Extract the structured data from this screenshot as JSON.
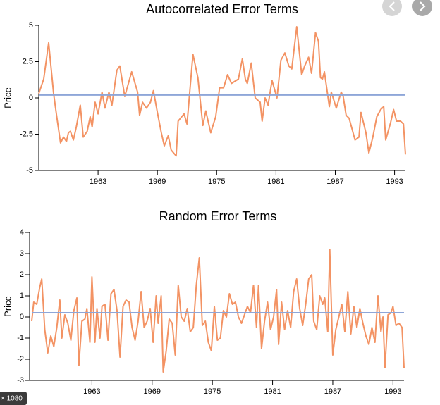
{
  "chart_data": [
    {
      "type": "line",
      "title": "Autocorrelated Error Terms",
      "y_label": "Price",
      "x": [
        1957.0,
        1957.5,
        1958.0,
        1958.5,
        1958.8,
        1959.2,
        1959.5,
        1959.8,
        1960.0,
        1960.2,
        1960.5,
        1960.8,
        1961.2,
        1961.5,
        1961.9,
        1962.2,
        1962.4,
        1962.7,
        1963.0,
        1963.4,
        1963.7,
        1964.1,
        1964.4,
        1964.9,
        1965.2,
        1965.7,
        1966.4,
        1967.0,
        1967.2,
        1967.5,
        1967.9,
        1968.3,
        1968.6,
        1969.0,
        1969.4,
        1969.7,
        1970.1,
        1970.4,
        1970.9,
        1971.1,
        1971.7,
        1972.0,
        1972.6,
        1973.1,
        1973.6,
        1973.9,
        1974.4,
        1974.9,
        1975.3,
        1975.7,
        1976.1,
        1976.5,
        1977.2,
        1977.6,
        1977.9,
        1978.1,
        1978.5,
        1978.9,
        1979.4,
        1979.6,
        1979.9,
        1980.2,
        1980.6,
        1981.1,
        1981.5,
        1981.9,
        1982.3,
        1982.6,
        1983.1,
        1983.6,
        1983.9,
        1984.3,
        1984.6,
        1985.0,
        1985.3,
        1985.5,
        1985.7,
        1985.9,
        1986.4,
        1986.6,
        1987.1,
        1987.6,
        1987.8,
        1988.1,
        1988.4,
        1989.0,
        1989.4,
        1989.6,
        1990.1,
        1990.4,
        1990.8,
        1991.2,
        1991.6,
        1991.9,
        1992.1,
        1992.6,
        1992.9,
        1993.2,
        1993.6,
        1993.9,
        1994.1
      ],
      "values": [
        0.3,
        1.3,
        3.8,
        0.3,
        -1.2,
        -3.1,
        -2.7,
        -3.0,
        -2.4,
        -2.3,
        -2.9,
        -2.0,
        -0.5,
        -2.7,
        -2.3,
        -1.3,
        -2.0,
        -0.3,
        -1.1,
        0.4,
        -0.7,
        0.4,
        -0.5,
        1.9,
        2.2,
        0.1,
        1.8,
        0.4,
        -1.2,
        -0.3,
        -0.7,
        -0.3,
        0.5,
        -1.0,
        -2.4,
        -3.3,
        -2.6,
        -3.6,
        -4.0,
        -1.6,
        -1.1,
        -1.8,
        3.0,
        1.4,
        -1.9,
        -0.9,
        -2.4,
        -1.3,
        0.7,
        0.7,
        1.6,
        1.0,
        1.3,
        2.7,
        1.3,
        1.0,
        2.4,
        0.0,
        -0.3,
        -1.6,
        0.0,
        -0.5,
        1.2,
        0.0,
        2.6,
        3.1,
        2.2,
        2.0,
        4.9,
        1.6,
        2.2,
        2.8,
        1.7,
        4.5,
        3.9,
        1.4,
        1.3,
        1.8,
        -0.6,
        0.4,
        -0.7,
        0.4,
        0.1,
        -1.2,
        -1.4,
        -2.9,
        -2.7,
        -1.0,
        -2.4,
        -3.8,
        -2.7,
        -1.3,
        -0.8,
        -0.6,
        -2.9,
        -1.7,
        -0.8,
        -1.6,
        -1.6,
        -1.8,
        -3.9
      ],
      "color": "#f39364",
      "reference_line": {
        "value": 0.2,
        "color": "#8ea6d8"
      },
      "xlim": [
        1957,
        1994.1
      ],
      "xticks": [
        1963,
        1969,
        1975,
        1981,
        1987,
        1993
      ],
      "ylim": [
        -5,
        5
      ],
      "yticks": [
        -5,
        -2.5,
        0,
        2.5,
        5
      ]
    },
    {
      "type": "line",
      "title": "Random Error Terms",
      "y_label": "Price",
      "x": [
        1957.0,
        1957.2,
        1957.5,
        1957.8,
        1958.0,
        1958.3,
        1958.6,
        1958.9,
        1959.2,
        1959.5,
        1959.8,
        1960.0,
        1960.3,
        1960.6,
        1960.9,
        1961.2,
        1961.5,
        1961.7,
        1962.0,
        1962.3,
        1962.5,
        1962.8,
        1963.0,
        1963.3,
        1963.5,
        1963.8,
        1964.0,
        1964.3,
        1964.6,
        1964.9,
        1965.2,
        1965.5,
        1965.8,
        1966.1,
        1966.4,
        1966.7,
        1967.0,
        1967.3,
        1967.6,
        1967.9,
        1968.2,
        1968.5,
        1968.8,
        1969.1,
        1969.4,
        1969.6,
        1969.9,
        1970.1,
        1970.4,
        1970.7,
        1971.0,
        1971.3,
        1971.6,
        1971.9,
        1972.2,
        1972.5,
        1972.8,
        1973.1,
        1973.4,
        1973.7,
        1974.0,
        1974.3,
        1974.6,
        1974.9,
        1975.2,
        1975.5,
        1975.8,
        1976.1,
        1976.4,
        1976.7,
        1977.0,
        1977.3,
        1977.6,
        1977.9,
        1978.2,
        1978.5,
        1978.8,
        1979.1,
        1979.4,
        1979.6,
        1979.9,
        1980.2,
        1980.5,
        1980.8,
        1981.1,
        1981.4,
        1981.6,
        1981.9,
        1982.2,
        1982.5,
        1982.8,
        1983.1,
        1983.4,
        1983.7,
        1984.0,
        1984.3,
        1984.6,
        1984.9,
        1985.1,
        1985.4,
        1985.7,
        1986.0,
        1986.2,
        1986.5,
        1986.7,
        1987.0,
        1987.3,
        1987.6,
        1987.9,
        1988.2,
        1988.5,
        1988.8,
        1989.1,
        1989.4,
        1989.7,
        1990.0,
        1990.3,
        1990.6,
        1990.9,
        1991.2,
        1991.5,
        1991.8,
        1992.0,
        1992.2,
        1992.5,
        1992.8,
        1993.0,
        1993.3,
        1993.6,
        1993.9,
        1994.1
      ],
      "values": [
        -0.2,
        0.7,
        0.6,
        1.4,
        1.8,
        -0.6,
        -1.7,
        -0.9,
        -1.4,
        -0.5,
        0.8,
        -1.0,
        0.1,
        -0.3,
        -1.1,
        0.3,
        0.9,
        -2.3,
        -0.2,
        -0.1,
        0.4,
        -1.2,
        1.9,
        -1.2,
        0.4,
        -1.0,
        0.5,
        0.6,
        -1.1,
        1.1,
        1.3,
        0.3,
        -1.9,
        0.5,
        0.8,
        0.7,
        -0.5,
        -1.1,
        -0.2,
        1.2,
        -0.5,
        -0.2,
        0.4,
        -1.2,
        1.0,
        -0.3,
        1.0,
        -2.6,
        -1.6,
        -0.1,
        -0.3,
        -1.8,
        1.5,
        0.0,
        -0.2,
        0.4,
        -0.7,
        -0.5,
        1.5,
        2.8,
        -0.4,
        -0.2,
        -1.2,
        -1.6,
        0.5,
        -1.1,
        -1.0,
        0.3,
        0.0,
        1.1,
        0.6,
        0.7,
        0.0,
        -0.3,
        0.1,
        0.5,
        0.2,
        1.5,
        -0.5,
        1.5,
        -1.5,
        -0.2,
        0.7,
        -0.6,
        0.0,
        1.3,
        -1.3,
        0.7,
        -0.6,
        0.3,
        -0.5,
        1.2,
        1.8,
        0.4,
        -0.4,
        0.6,
        1.8,
        2.0,
        -0.2,
        -0.6,
        1.0,
        0.6,
        0.9,
        -0.7,
        3.2,
        -1.8,
        -0.6,
        0.0,
        0.6,
        -0.7,
        1.2,
        -0.8,
        0.5,
        -0.5,
        0.4,
        -0.3,
        -0.9,
        -1.3,
        -0.5,
        -1.2,
        1.0,
        -0.7,
        0.0,
        -2.4,
        0.1,
        0.2,
        0.5,
        -0.4,
        -0.3,
        -0.5,
        -2.4
      ],
      "color": "#f39364",
      "reference_line": {
        "value": 0.2,
        "color": "#8ea6d8"
      },
      "xlim": [
        1957,
        1994.1
      ],
      "xticks": [
        1963,
        1969,
        1975,
        1981,
        1987,
        1993
      ],
      "ylim": [
        -3,
        4
      ],
      "yticks": [
        -3,
        -2,
        -1,
        0,
        1,
        2,
        3,
        4
      ]
    }
  ],
  "overlay": {
    "size_label": "× 1080"
  }
}
